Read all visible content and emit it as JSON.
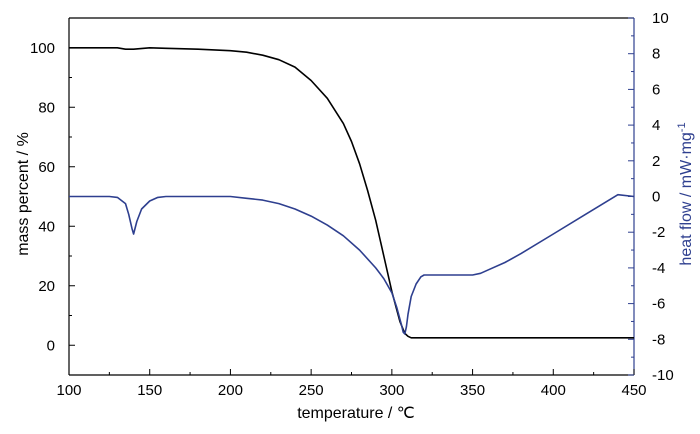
{
  "chart_data": {
    "type": "line",
    "title": "",
    "xlabel": "temperature / ℃",
    "ylabel_left": "mass percent / %",
    "ylabel_right": "heat flow / mW·mg",
    "ylabel_right_superscript": "-1",
    "xlim": [
      100,
      450
    ],
    "ylim_left": [
      -10,
      110
    ],
    "ylim_right": [
      -10,
      10
    ],
    "x_ticks": [
      100,
      150,
      200,
      250,
      300,
      350,
      400,
      450
    ],
    "y_left_ticks": [
      0,
      20,
      40,
      60,
      80,
      100
    ],
    "y_right_ticks": [
      -10,
      -8,
      -6,
      -4,
      -2,
      0,
      2,
      4,
      6,
      8,
      10
    ],
    "grid": false,
    "legend": "none",
    "series": [
      {
        "axis": "left",
        "color": "#000000",
        "x": [
          100,
          120,
          130,
          135,
          140,
          150,
          160,
          180,
          200,
          210,
          220,
          230,
          240,
          250,
          260,
          270,
          275,
          280,
          285,
          290,
          295,
          300,
          305,
          308,
          310,
          312,
          315,
          330,
          350,
          400,
          450
        ],
        "values": [
          100,
          100,
          100,
          99.5,
          99.5,
          100,
          99.8,
          99.5,
          99,
          98.5,
          97.5,
          96,
          93.5,
          89,
          83,
          74.5,
          68.5,
          61,
          52,
          42,
          30,
          18,
          8,
          4,
          3,
          2.5,
          2.5,
          2.5,
          2.5,
          2.5,
          2.5
        ]
      },
      {
        "axis": "right",
        "color": "#2e3f8f",
        "x": [
          100,
          110,
          120,
          125,
          130,
          135,
          137,
          139,
          140,
          142,
          145,
          150,
          155,
          160,
          170,
          180,
          200,
          210,
          220,
          230,
          240,
          250,
          260,
          270,
          280,
          290,
          295,
          300,
          303,
          306,
          307,
          308,
          309,
          310,
          312,
          315,
          318,
          320,
          325,
          330,
          340,
          350,
          355,
          360,
          370,
          380,
          400,
          420,
          440,
          450
        ],
        "values": [
          0,
          0,
          0,
          0,
          -0.05,
          -0.4,
          -1,
          -1.8,
          -2.1,
          -1.4,
          -0.7,
          -0.25,
          -0.05,
          0,
          0,
          0,
          0,
          -0.1,
          -0.2,
          -0.4,
          -0.7,
          -1.1,
          -1.6,
          -2.2,
          -3,
          -4,
          -4.6,
          -5.4,
          -6.2,
          -7.2,
          -7.6,
          -7.7,
          -7.3,
          -6.6,
          -5.6,
          -4.9,
          -4.5,
          -4.4,
          -4.4,
          -4.4,
          -4.4,
          -4.4,
          -4.3,
          -4.1,
          -3.7,
          -3.2,
          -2.1,
          -1,
          0.1,
          0
        ]
      }
    ]
  }
}
